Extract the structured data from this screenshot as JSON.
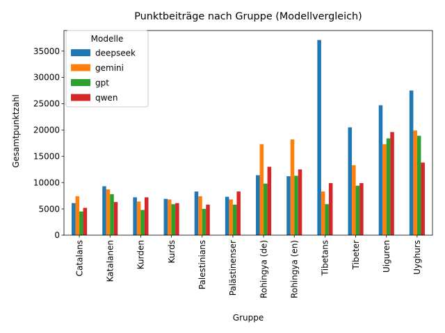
{
  "chart_data": {
    "type": "bar",
    "title": "Punktbeiträge nach Gruppe (Modellvergleich)",
    "xlabel": "Gruppe",
    "ylabel": "Gesamtpunktzahl",
    "ylim": [
      0,
      38900
    ],
    "yticks": [
      0,
      5000,
      10000,
      15000,
      20000,
      25000,
      30000,
      35000
    ],
    "grid": false,
    "legend_title": "Modelle",
    "legend_position": "upper-left",
    "categories": [
      "Catalans",
      "Katalanen",
      "Kurden",
      "Kurds",
      "Palestinians",
      "Palästinenser",
      "Rohingya (de)",
      "Rohingya (en)",
      "Tibetans",
      "Tibeter",
      "Uiguren",
      "Uyghurs"
    ],
    "series": [
      {
        "name": "deepseek",
        "color": "#1f77b4",
        "values": [
          6100,
          9300,
          7200,
          6900,
          8300,
          7300,
          11400,
          11200,
          37100,
          20500,
          24700,
          27500
        ]
      },
      {
        "name": "gemini",
        "color": "#ff7f0e",
        "values": [
          7400,
          8700,
          6400,
          6800,
          7400,
          6800,
          17300,
          18200,
          8300,
          13300,
          17300,
          19900
        ]
      },
      {
        "name": "gpt",
        "color": "#2ca02c",
        "values": [
          4500,
          7800,
          4800,
          5900,
          5000,
          5800,
          9800,
          11300,
          5900,
          9400,
          18400,
          18900
        ]
      },
      {
        "name": "qwen",
        "color": "#d62728",
        "values": [
          5200,
          6300,
          7200,
          6100,
          5800,
          8300,
          13000,
          12500,
          9900,
          9900,
          19600,
          13800
        ]
      }
    ]
  }
}
